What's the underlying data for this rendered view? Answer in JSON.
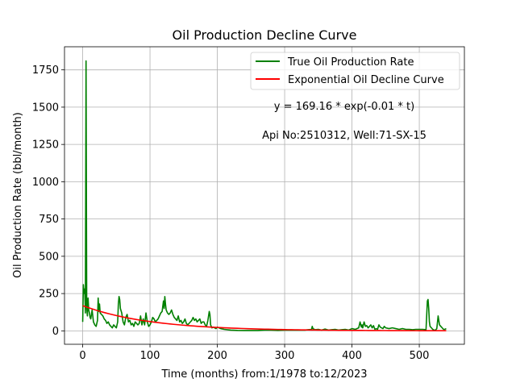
{
  "chart_data": {
    "type": "line",
    "title": "Oil Production Decline Curve",
    "xlabel": "Time (months) from:1/1978 to:12/2023",
    "ylabel": "Oil Production Rate (bbl/month)",
    "xlim": [
      -27,
      567
    ],
    "ylim": [
      -90,
      1905
    ],
    "xticks": [
      0,
      100,
      200,
      300,
      400,
      500
    ],
    "yticks": [
      0,
      250,
      500,
      750,
      1000,
      1250,
      1500,
      1750
    ],
    "grid": true,
    "legend_position": "top-right",
    "annotations": [
      "y = 169.16 * exp(-0.01 * t)",
      "Api No:2510312, Well:71-SX-15"
    ],
    "series": [
      {
        "name": "True Oil Production Rate",
        "color": "#008000",
        "x": [
          0,
          1,
          2,
          3,
          4,
          5,
          6,
          7,
          8,
          9,
          10,
          11,
          12,
          14,
          16,
          18,
          20,
          22,
          23,
          24,
          25,
          26,
          28,
          30,
          32,
          34,
          36,
          38,
          40,
          42,
          44,
          46,
          48,
          50,
          52,
          53,
          54,
          55,
          56,
          58,
          60,
          62,
          64,
          66,
          68,
          70,
          72,
          74,
          76,
          78,
          80,
          82,
          84,
          86,
          88,
          90,
          92,
          94,
          96,
          98,
          100,
          102,
          104,
          106,
          108,
          110,
          112,
          114,
          116,
          118,
          120,
          121,
          122,
          123,
          124,
          126,
          128,
          130,
          132,
          134,
          136,
          138,
          140,
          142,
          144,
          146,
          148,
          150,
          152,
          154,
          156,
          158,
          160,
          162,
          164,
          166,
          168,
          170,
          172,
          174,
          176,
          178,
          180,
          182,
          184,
          186,
          187,
          188,
          189,
          190,
          192,
          194,
          196,
          198,
          200,
          205,
          210,
          220,
          230,
          240,
          250,
          260,
          270,
          280,
          290,
          300,
          310,
          320,
          330,
          335,
          340,
          341,
          342,
          345,
          350,
          355,
          360,
          365,
          370,
          375,
          380,
          385,
          390,
          395,
          400,
          405,
          410,
          412,
          414,
          415,
          416,
          418,
          420,
          422,
          424,
          426,
          428,
          430,
          432,
          434,
          436,
          438,
          440,
          442,
          444,
          446,
          448,
          450,
          455,
          460,
          465,
          470,
          475,
          480,
          485,
          490,
          495,
          500,
          505,
          510,
          512,
          513,
          514,
          515,
          516,
          518,
          520,
          522,
          524,
          526,
          528,
          530,
          532,
          534,
          536,
          538,
          540
        ],
        "values": [
          60,
          310,
          250,
          280,
          120,
          1810,
          150,
          100,
          220,
          140,
          120,
          90,
          80,
          140,
          60,
          40,
          30,
          70,
          220,
          130,
          180,
          120,
          110,
          100,
          80,
          70,
          50,
          60,
          40,
          30,
          20,
          40,
          30,
          20,
          60,
          180,
          230,
          210,
          150,
          120,
          60,
          40,
          90,
          110,
          60,
          70,
          40,
          50,
          30,
          60,
          50,
          40,
          50,
          100,
          40,
          80,
          40,
          120,
          60,
          30,
          40,
          60,
          90,
          80,
          60,
          70,
          80,
          100,
          120,
          130,
          200,
          150,
          230,
          180,
          140,
          120,
          110,
          120,
          140,
          110,
          90,
          80,
          70,
          100,
          60,
          70,
          50,
          60,
          80,
          50,
          40,
          50,
          60,
          70,
          90,
          70,
          80,
          60,
          70,
          80,
          50,
          60,
          60,
          40,
          30,
          70,
          100,
          130,
          110,
          40,
          20,
          25,
          20,
          15,
          25,
          15,
          10,
          5,
          3,
          2,
          2,
          2,
          5,
          5,
          3,
          5,
          5,
          5,
          5,
          8,
          10,
          30,
          15,
          8,
          10,
          5,
          12,
          5,
          8,
          10,
          5,
          8,
          10,
          5,
          15,
          10,
          20,
          60,
          25,
          40,
          20,
          60,
          30,
          35,
          20,
          30,
          40,
          20,
          35,
          10,
          15,
          10,
          40,
          25,
          20,
          15,
          30,
          20,
          15,
          20,
          15,
          10,
          15,
          10,
          10,
          8,
          10,
          10,
          10,
          8,
          200,
          210,
          150,
          60,
          30,
          20,
          10,
          5,
          5,
          15,
          100,
          40,
          30,
          20,
          10,
          10,
          15
        ]
      },
      {
        "name": "Exponential Oil Decline Curve",
        "color": "#ff0000",
        "function": "169.16 * exp(-0.01 * t)",
        "a": 169.16,
        "b": -0.01,
        "x_range": [
          0,
          540
        ]
      }
    ]
  }
}
